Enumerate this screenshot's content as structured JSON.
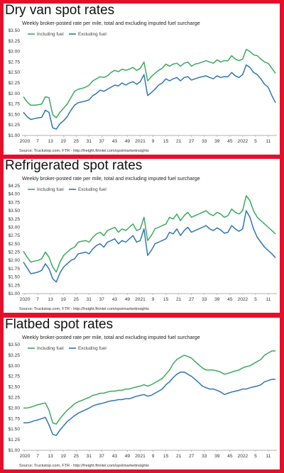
{
  "colors": {
    "including": "#3aaa5c",
    "excluding": "#2e75b6",
    "frame": "#e3102a"
  },
  "chart_data": [
    {
      "type": "line",
      "title": "Dry van spot rates",
      "subtitle": "Weekly broker-posted rate per mile, total and excluding imputed fuel surcharge",
      "source": "Source: Truckstop.com, FTR - http://freight.ftrintel.com/spotmarketinsights",
      "xlabel": "",
      "ylabel": "",
      "y_tick_labels": [
        "$1.00",
        "$1.25",
        "$1.50",
        "$1.75",
        "$2.00",
        "$2.25",
        "$2.50",
        "$2.75",
        "$3.00",
        "$3.25",
        "$3.50"
      ],
      "ylim": [
        1.0,
        3.5
      ],
      "x_tick_labels": [
        "2020",
        "7",
        "13",
        "19",
        "25",
        "31",
        "37",
        "43",
        "49",
        "2021",
        "9",
        "15",
        "21",
        "27",
        "33",
        "39",
        "45",
        "2022",
        "5",
        "11"
      ],
      "grid": false,
      "legend": "top-left",
      "series": [
        {
          "name": "Including fuel",
          "color": "#3aaa5c",
          "values": [
            1.92,
            1.8,
            1.72,
            1.72,
            1.73,
            1.75,
            1.92,
            1.9,
            1.5,
            1.42,
            1.55,
            1.65,
            1.75,
            1.9,
            2.05,
            2.1,
            2.12,
            2.15,
            2.2,
            2.3,
            2.35,
            2.4,
            2.38,
            2.42,
            2.5,
            2.55,
            2.52,
            2.58,
            2.55,
            2.58,
            2.62,
            2.55,
            2.6,
            2.75,
            2.3,
            2.4,
            2.48,
            2.55,
            2.6,
            2.7,
            2.65,
            2.7,
            2.72,
            2.65,
            2.72,
            2.75,
            2.65,
            2.7,
            2.72,
            2.75,
            2.78,
            2.75,
            2.72,
            2.8,
            2.75,
            2.78,
            2.78,
            2.9,
            2.82,
            2.78,
            2.82,
            3.05,
            3.0,
            2.92,
            2.9,
            2.82,
            2.75,
            2.72,
            2.6,
            2.48
          ]
        },
        {
          "name": "Excluding fuel",
          "color": "#2e75b6",
          "values": [
            1.55,
            1.45,
            1.38,
            1.4,
            1.42,
            1.43,
            1.6,
            1.55,
            1.18,
            1.15,
            1.28,
            1.35,
            1.45,
            1.6,
            1.72,
            1.78,
            1.8,
            1.82,
            1.85,
            1.95,
            2.0,
            2.08,
            2.05,
            2.1,
            2.15,
            2.2,
            2.18,
            2.25,
            2.2,
            2.25,
            2.28,
            2.22,
            2.28,
            2.45,
            1.95,
            2.02,
            2.1,
            2.2,
            2.25,
            2.35,
            2.3,
            2.35,
            2.38,
            2.3,
            2.38,
            2.4,
            2.32,
            2.35,
            2.38,
            2.4,
            2.42,
            2.38,
            2.35,
            2.42,
            2.38,
            2.4,
            2.4,
            2.5,
            2.42,
            2.38,
            2.45,
            2.68,
            2.62,
            2.5,
            2.45,
            2.35,
            2.22,
            2.15,
            1.95,
            1.78
          ]
        }
      ]
    },
    {
      "type": "line",
      "title": "Refrigerated spot rates",
      "subtitle": "Weekly broker-posted rate per mile, total and excluding imputed fuel surcharge",
      "source": "Source: Truckstop.com, FTR - http://freight.ftrintel.com/spotmarketinsights",
      "xlabel": "",
      "ylabel": "",
      "y_tick_labels": [
        "$1.00",
        "$1.25",
        "$1.50",
        "$1.75",
        "$2.00",
        "$2.25",
        "$2.50",
        "$2.75",
        "$3.00",
        "$3.25",
        "$3.50",
        "$3.75",
        "$4.00",
        "$4.25"
      ],
      "ylim": [
        1.0,
        4.25
      ],
      "x_tick_labels": [
        "2020",
        "7",
        "13",
        "19",
        "25",
        "31",
        "37",
        "43",
        "49",
        "2021",
        "9",
        "15",
        "21",
        "27",
        "33",
        "39",
        "45",
        "2022",
        "5",
        "11"
      ],
      "grid": false,
      "legend": "top-left",
      "series": [
        {
          "name": "Including fuel",
          "color": "#3aaa5c",
          "values": [
            2.28,
            2.1,
            1.95,
            1.98,
            2.0,
            2.05,
            2.25,
            2.1,
            1.8,
            1.65,
            1.95,
            2.15,
            2.25,
            2.35,
            2.4,
            2.55,
            2.58,
            2.6,
            2.55,
            2.7,
            2.8,
            2.85,
            2.75,
            2.9,
            2.95,
            3.0,
            2.85,
            2.95,
            2.9,
            3.0,
            3.1,
            2.9,
            2.95,
            3.3,
            2.6,
            2.75,
            2.95,
            3.0,
            3.05,
            3.1,
            3.3,
            3.25,
            3.4,
            3.2,
            3.35,
            3.45,
            3.3,
            3.35,
            3.4,
            3.45,
            3.5,
            3.4,
            3.35,
            3.45,
            3.4,
            3.3,
            3.35,
            3.55,
            3.45,
            3.4,
            3.5,
            3.95,
            3.8,
            3.5,
            3.3,
            3.2,
            3.1,
            3.0,
            2.9,
            2.8
          ]
        },
        {
          "name": "Excluding fuel",
          "color": "#2e75b6",
          "values": [
            1.95,
            1.78,
            1.6,
            1.62,
            1.65,
            1.7,
            1.9,
            1.75,
            1.45,
            1.35,
            1.62,
            1.8,
            1.9,
            2.0,
            2.05,
            2.2,
            2.22,
            2.25,
            2.2,
            2.35,
            2.45,
            2.5,
            2.4,
            2.55,
            2.6,
            2.65,
            2.5,
            2.6,
            2.55,
            2.65,
            2.75,
            2.55,
            2.6,
            2.95,
            2.15,
            2.3,
            2.5,
            2.55,
            2.6,
            2.65,
            2.85,
            2.8,
            2.95,
            2.75,
            2.9,
            3.0,
            2.85,
            2.9,
            2.95,
            3.0,
            3.05,
            2.95,
            2.9,
            2.98,
            2.92,
            2.82,
            2.85,
            3.05,
            2.95,
            2.88,
            2.95,
            3.5,
            3.3,
            2.95,
            2.7,
            2.55,
            2.4,
            2.3,
            2.2,
            2.08
          ]
        }
      ]
    },
    {
      "type": "line",
      "title": "Flatbed spot rates",
      "subtitle": "Weekly broker-posted rate per mile, total and excluding imputed fuel surcharge",
      "source": "Source: Truckstop.com, FTR - http://freight.ftrintel.com/spotmarketinsights",
      "xlabel": "",
      "ylabel": "",
      "y_tick_labels": [
        "$1.00",
        "$1.25",
        "$1.50",
        "$1.75",
        "$2.00",
        "$2.25",
        "$2.50",
        "$2.75",
        "$3.00",
        "$3.25",
        "$3.50"
      ],
      "ylim": [
        1.0,
        3.5
      ],
      "x_tick_labels": [
        "2020",
        "7",
        "13",
        "19",
        "25",
        "31",
        "37",
        "43",
        "49",
        "2021",
        "9",
        "15",
        "21",
        "27",
        "33",
        "39",
        "45",
        "2022",
        "5",
        "11"
      ],
      "grid": false,
      "legend": "top-left",
      "series": [
        {
          "name": "Including fuel",
          "color": "#3aaa5c",
          "values": [
            2.0,
            2.0,
            2.02,
            2.05,
            2.08,
            2.1,
            2.12,
            1.95,
            1.65,
            1.62,
            1.75,
            1.85,
            1.95,
            2.02,
            2.1,
            2.15,
            2.18,
            2.22,
            2.25,
            2.3,
            2.32,
            2.35,
            2.35,
            2.38,
            2.4,
            2.4,
            2.42,
            2.42,
            2.45,
            2.45,
            2.48,
            2.5,
            2.52,
            2.55,
            2.52,
            2.55,
            2.6,
            2.65,
            2.7,
            2.8,
            2.9,
            3.05,
            3.15,
            3.2,
            3.25,
            3.22,
            3.18,
            3.1,
            3.02,
            2.95,
            2.9,
            2.9,
            2.9,
            2.88,
            2.85,
            2.8,
            2.82,
            2.85,
            2.88,
            2.9,
            2.95,
            2.98,
            3.0,
            3.05,
            3.1,
            3.15,
            3.25,
            3.3,
            3.35,
            3.35
          ]
        },
        {
          "name": "Excluding fuel",
          "color": "#2e75b6",
          "values": [
            1.65,
            1.65,
            1.67,
            1.7,
            1.72,
            1.75,
            1.78,
            1.6,
            1.38,
            1.35,
            1.48,
            1.58,
            1.68,
            1.75,
            1.82,
            1.88,
            1.92,
            1.96,
            2.0,
            2.05,
            2.08,
            2.1,
            2.12,
            2.15,
            2.17,
            2.18,
            2.2,
            2.2,
            2.22,
            2.22,
            2.25,
            2.28,
            2.3,
            2.32,
            2.28,
            2.3,
            2.35,
            2.4,
            2.45,
            2.55,
            2.62,
            2.72,
            2.8,
            2.85,
            2.85,
            2.8,
            2.75,
            2.68,
            2.6,
            2.52,
            2.48,
            2.45,
            2.45,
            2.42,
            2.38,
            2.32,
            2.35,
            2.38,
            2.4,
            2.42,
            2.45,
            2.45,
            2.48,
            2.5,
            2.52,
            2.55,
            2.62,
            2.65,
            2.68,
            2.68
          ]
        }
      ]
    }
  ]
}
